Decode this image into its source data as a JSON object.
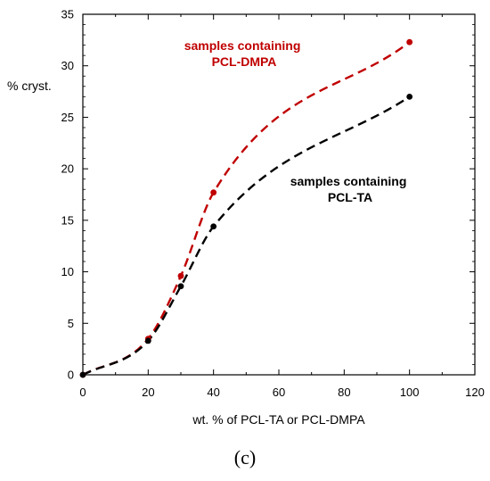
{
  "chart_data": {
    "type": "line",
    "xlabel": "wt. % of PCL-TA or PCL-DMPA",
    "ylabel": "% cryst.",
    "xlim": [
      0,
      120
    ],
    "ylim": [
      0,
      35
    ],
    "xticks": [
      0,
      20,
      40,
      60,
      80,
      100,
      120
    ],
    "yticks": [
      0,
      5,
      10,
      15,
      20,
      25,
      30,
      35
    ],
    "grid": false,
    "panel_label": "(c)",
    "series": [
      {
        "name": "samples containing PCL-DMPA",
        "label_lines": [
          "samples containing",
          "PCL-DMPA"
        ],
        "color": "#c00000",
        "style": "dashed",
        "points": [
          [
            0,
            0
          ],
          [
            20,
            3.5
          ],
          [
            30,
            9.6
          ],
          [
            40,
            17.7
          ],
          [
            100,
            32.3
          ]
        ]
      },
      {
        "name": "samples containing PCL-TA",
        "label_lines": [
          "samples containing",
          "PCL-TA"
        ],
        "color": "#000000",
        "style": "dashed",
        "points": [
          [
            0,
            0
          ],
          [
            20,
            3.3
          ],
          [
            30,
            8.6
          ],
          [
            40,
            14.4
          ],
          [
            100,
            27.0
          ]
        ]
      }
    ]
  }
}
